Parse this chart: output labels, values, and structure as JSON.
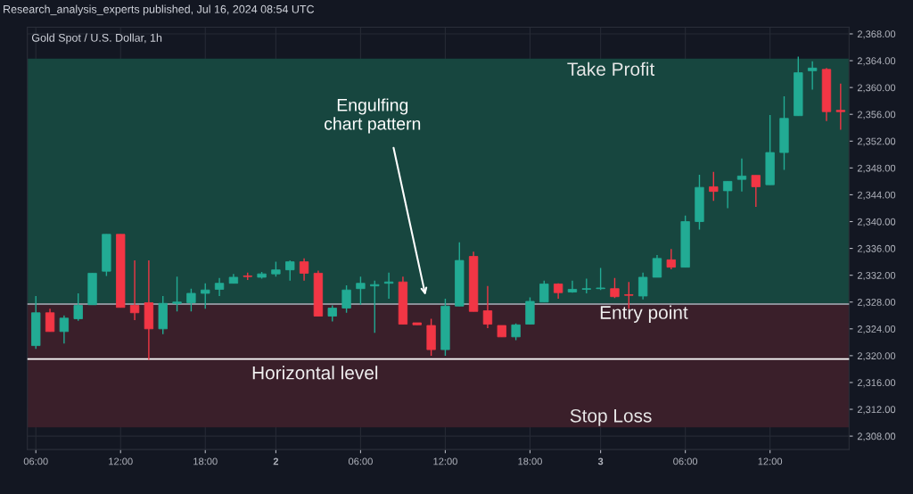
{
  "chart_data": {
    "type": "candlestick",
    "title": "Gold Spot / U.S. Dollar, 1h",
    "categories": [
      "06:00",
      null,
      null,
      null,
      null,
      null,
      "12:00",
      null,
      null,
      null,
      null,
      null,
      "18:00",
      null,
      null,
      null,
      null,
      "2",
      null,
      null,
      null,
      null,
      null,
      "06:00",
      null,
      null,
      null,
      null,
      null,
      "12:00",
      null,
      null,
      null,
      null,
      null,
      "18:00",
      null,
      null,
      null,
      null,
      "3",
      null,
      null,
      null,
      null,
      null,
      "06:00",
      null,
      null,
      null,
      null,
      null,
      "12:00",
      null,
      null,
      null,
      null,
      null
    ],
    "ohlc": [
      [
        2321.5,
        2328.9,
        2321.0,
        2326.4
      ],
      [
        2326.4,
        2327.0,
        2323.6,
        2323.6
      ],
      [
        2323.6,
        2326.0,
        2321.8,
        2325.6
      ],
      [
        2325.5,
        2329.3,
        2325.2,
        2327.5
      ],
      [
        2327.6,
        2332.3,
        2327.6,
        2332.3
      ],
      [
        2332.6,
        2338.1,
        2331.9,
        2338.1
      ],
      [
        2338.1,
        2338.1,
        2327.2,
        2327.2
      ],
      [
        2327.5,
        2334.2,
        2325.3,
        2326.4
      ],
      [
        2327.9,
        2334.2,
        2319.4,
        2324.0
      ],
      [
        2324.0,
        2328.9,
        2323.2,
        2327.8
      ],
      [
        2327.8,
        2331.8,
        2326.6,
        2328.0
      ],
      [
        2327.9,
        2330.0,
        2326.6,
        2329.3
      ],
      [
        2329.3,
        2330.8,
        2327.0,
        2329.8
      ],
      [
        2329.9,
        2331.6,
        2328.9,
        2330.8
      ],
      [
        2330.8,
        2332.2,
        2330.8,
        2331.7
      ],
      [
        2331.9,
        2332.4,
        2331.3,
        2331.8
      ],
      [
        2331.7,
        2332.5,
        2331.5,
        2332.2
      ],
      [
        2332.2,
        2334.0,
        2331.8,
        2332.8
      ],
      [
        2332.8,
        2334.2,
        2331.2,
        2334.0
      ],
      [
        2334.0,
        2334.5,
        2331.2,
        2332.3
      ],
      [
        2332.3,
        2332.7,
        2325.9,
        2325.9
      ],
      [
        2325.9,
        2327.5,
        2325.1,
        2327.1
      ],
      [
        2327.1,
        2330.5,
        2326.4,
        2329.8
      ],
      [
        2330.0,
        2331.8,
        2327.6,
        2330.8
      ],
      [
        2330.4,
        2331.2,
        2323.4,
        2330.6
      ],
      [
        2330.8,
        2332.4,
        2328.5,
        2331.0
      ],
      [
        2331.0,
        2331.8,
        2324.7,
        2324.7
      ],
      [
        2324.9,
        2324.9,
        2324.6,
        2324.6
      ],
      [
        2324.5,
        2325.5,
        2320.0,
        2320.9
      ],
      [
        2320.9,
        2328.5,
        2320.0,
        2327.4
      ],
      [
        2327.4,
        2336.9,
        2327.4,
        2334.2
      ],
      [
        2334.8,
        2335.5,
        2326.6,
        2326.6
      ],
      [
        2326.7,
        2330.4,
        2324.1,
        2324.7
      ],
      [
        2324.5,
        2324.5,
        2322.8,
        2322.8
      ],
      [
        2322.8,
        2324.8,
        2322.3,
        2324.6
      ],
      [
        2324.7,
        2328.7,
        2324.7,
        2328.1
      ],
      [
        2328.0,
        2331.2,
        2328.0,
        2330.7
      ],
      [
        2330.7,
        2330.8,
        2328.5,
        2329.4
      ],
      [
        2329.5,
        2331.2,
        2329.4,
        2329.9
      ],
      [
        2329.9,
        2331.5,
        2329.3,
        2330.0
      ],
      [
        2330.0,
        2333.1,
        2329.8,
        2330.1
      ],
      [
        2330.0,
        2331.6,
        2328.6,
        2328.8
      ],
      [
        2329.1,
        2331.0,
        2327.0,
        2329.0
      ],
      [
        2328.9,
        2332.4,
        2328.4,
        2331.7
      ],
      [
        2331.7,
        2335.0,
        2331.7,
        2334.5
      ],
      [
        2334.3,
        2335.9,
        2332.9,
        2333.2
      ],
      [
        2333.2,
        2340.9,
        2333.2,
        2340.0
      ],
      [
        2340.0,
        2347.0,
        2338.8,
        2345.1
      ],
      [
        2345.2,
        2347.4,
        2343.1,
        2344.5
      ],
      [
        2344.6,
        2346.0,
        2342.0,
        2346.0
      ],
      [
        2346.3,
        2349.4,
        2344.5,
        2346.8
      ],
      [
        2346.9,
        2346.9,
        2342.2,
        2345.2
      ],
      [
        2345.5,
        2355.9,
        2345.5,
        2350.3
      ],
      [
        2350.3,
        2358.7,
        2347.7,
        2355.4
      ],
      [
        2355.8,
        2364.6,
        2355.8,
        2362.2
      ],
      [
        2362.5,
        2363.9,
        2359.7,
        2362.9
      ],
      [
        2362.7,
        2362.9,
        2355.0,
        2356.4
      ],
      [
        2356.6,
        2360.6,
        2353.7,
        2356.4
      ]
    ],
    "colors": [
      "#22ab94",
      "#f23645",
      "#22ab94",
      "#22ab94",
      "#22ab94",
      "#22ab94",
      "#f23645",
      "#f23645",
      "#f23645",
      "#22ab94",
      "#22ab94",
      "#22ab94",
      "#22ab94",
      "#22ab94",
      "#22ab94",
      "#f23645",
      "#22ab94",
      "#22ab94",
      "#22ab94",
      "#f23645",
      "#f23645",
      "#22ab94",
      "#22ab94",
      "#22ab94",
      "#22ab94",
      "#22ab94",
      "#f23645",
      "#f23645",
      "#f23645",
      "#22ab94",
      "#22ab94",
      "#f23645",
      "#f23645",
      "#f23645",
      "#22ab94",
      "#22ab94",
      "#22ab94",
      "#f23645",
      "#22ab94",
      "#22ab94",
      "#22ab94",
      "#f23645",
      "#f23645",
      "#22ab94",
      "#22ab94",
      "#f23645",
      "#22ab94",
      "#22ab94",
      "#f23645",
      "#22ab94",
      "#22ab94",
      "#f23645",
      "#22ab94",
      "#22ab94",
      "#22ab94",
      "#22ab94",
      "#f23645",
      "#f23645"
    ],
    "ylim": [
      2306,
      2369
    ],
    "yticks": [
      {
        "value": 2308,
        "label": "2,308.00"
      },
      {
        "value": 2312,
        "label": "2,312.00"
      },
      {
        "value": 2316,
        "label": "2,316.00"
      },
      {
        "value": 2320,
        "label": "2,320.00"
      },
      {
        "value": 2324,
        "label": "2,324.00"
      },
      {
        "value": 2328,
        "label": "2,328.00"
      },
      {
        "value": 2332,
        "label": "2,332.00"
      },
      {
        "value": 2336,
        "label": "2,336.00"
      },
      {
        "value": 2340,
        "label": "2,340.00"
      },
      {
        "value": 2344,
        "label": "2,344.00"
      },
      {
        "value": 2348,
        "label": "2,348.00"
      },
      {
        "value": 2352,
        "label": "2,352.00"
      },
      {
        "value": 2356,
        "label": "2,356.00"
      },
      {
        "value": 2360,
        "label": "2,360.00"
      },
      {
        "value": 2364,
        "label": "2,364.00"
      },
      {
        "value": 2368,
        "label": "2,368.00"
      }
    ],
    "grid": true,
    "bands": [
      {
        "axis": "y",
        "from": 2327.7,
        "to": 2364.3,
        "label": "Take Profit",
        "color": "#17463f"
      },
      {
        "axis": "y",
        "from": 2309.3,
        "to": 2327.7,
        "label": "Stop Loss",
        "color": "#3a1f2a"
      }
    ],
    "ref_lines": [
      {
        "axis": "y",
        "value": 2327.7,
        "label": "Entry point",
        "color": "#8a8f98"
      },
      {
        "axis": "y",
        "value": 2319.5,
        "label": "Horizontal level",
        "color": "#ffffff"
      }
    ],
    "annotations": [
      "Research_analysis_experts published, Jul 16, 2024 08:54 UTC",
      "Engulfing\nchart pattern"
    ]
  }
}
